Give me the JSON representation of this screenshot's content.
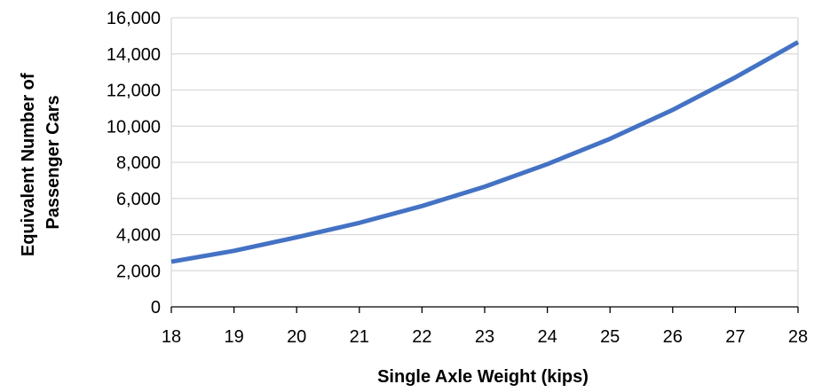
{
  "chart_data": {
    "type": "line",
    "title": "",
    "xlabel": "Single Axle Weight (kips)",
    "ylabel_lines": [
      "Equivalent Number of",
      "Passenger Cars"
    ],
    "x": [
      18,
      19,
      20,
      21,
      22,
      23,
      24,
      25,
      26,
      27,
      28
    ],
    "series": [
      {
        "values": [
          2500,
          3100,
          3850,
          4650,
          5580,
          6650,
          7900,
          9300,
          10900,
          12700,
          14650
        ],
        "color": "#4472C4"
      }
    ],
    "xlim": [
      18,
      28
    ],
    "ylim": [
      0,
      16000
    ],
    "x_ticks": [
      18,
      19,
      20,
      21,
      22,
      23,
      24,
      25,
      26,
      27,
      28
    ],
    "x_tick_labels": [
      "18",
      "19",
      "20",
      "21",
      "22",
      "23",
      "24",
      "25",
      "26",
      "27",
      "28"
    ],
    "y_ticks": [
      0,
      2000,
      4000,
      6000,
      8000,
      10000,
      12000,
      14000,
      16000
    ],
    "y_tick_labels": [
      "0",
      "2,000",
      "4,000",
      "6,000",
      "8,000",
      "10,000",
      "12,000",
      "14,000",
      "16,000"
    ],
    "grid": true,
    "legend": "none"
  }
}
